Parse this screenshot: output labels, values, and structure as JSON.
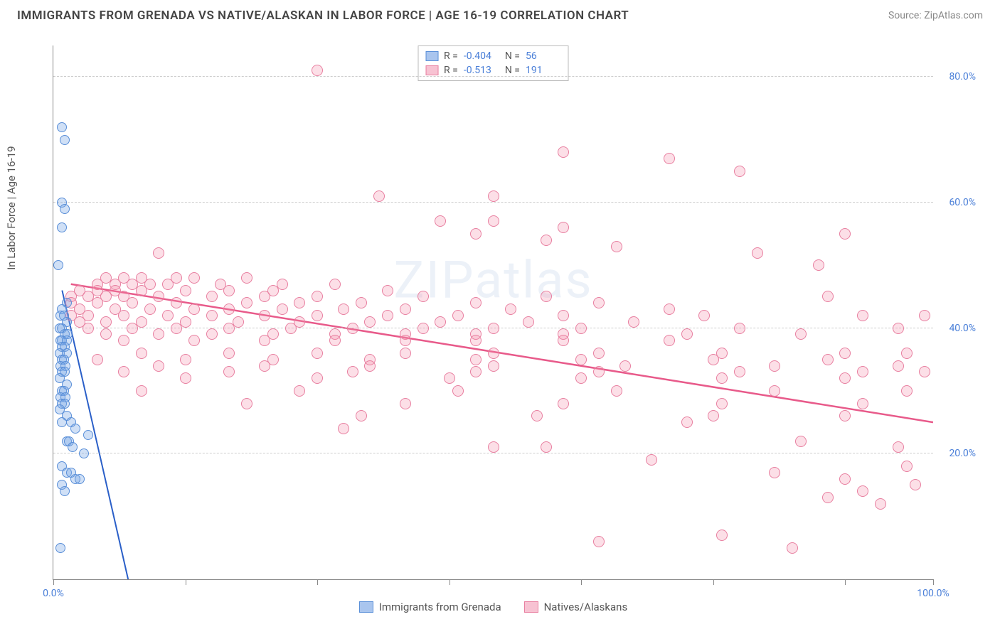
{
  "title": "IMMIGRANTS FROM GRENADA VS NATIVE/ALASKAN IN LABOR FORCE | AGE 16-19 CORRELATION CHART",
  "source": "Source: ZipAtlas.com",
  "ylabel": "In Labor Force | Age 16-19",
  "watermark": "ZIPatlas",
  "xlim": [
    0,
    100
  ],
  "ylim": [
    0,
    85
  ],
  "xtick_positions": [
    0,
    15,
    30,
    45,
    60,
    75,
    90,
    100
  ],
  "xtick_labels": {
    "0": "0.0%",
    "100": "100.0%"
  },
  "ytick_positions": [
    20,
    40,
    60,
    80
  ],
  "ytick_labels": {
    "20": "20.0%",
    "40": "40.0%",
    "60": "60.0%",
    "80": "80.0%"
  },
  "grid_y": [
    20,
    40,
    60,
    80
  ],
  "grid_color": "#cccccc",
  "background_color": "#ffffff",
  "series": {
    "grenada": {
      "label": "Immigrants from Grenada",
      "marker_fill": "rgba(120, 165, 230, 0.35)",
      "marker_stroke": "#5a8fd8",
      "marker_size": 14,
      "swatch_fill": "#a9c5ee",
      "swatch_stroke": "#5a8fd8",
      "R": "-0.404",
      "N": "56",
      "trend": {
        "x1": 1,
        "y1": 46,
        "x2": 8.5,
        "y2": 0,
        "color": "#2a5fc8",
        "width": 2
      },
      "points": [
        [
          1,
          72
        ],
        [
          1.3,
          70
        ],
        [
          1,
          60
        ],
        [
          1.3,
          59
        ],
        [
          1,
          56
        ],
        [
          0.6,
          50
        ],
        [
          1.5,
          44
        ],
        [
          1,
          43
        ],
        [
          0.8,
          42
        ],
        [
          1.2,
          42
        ],
        [
          1.5,
          41
        ],
        [
          1,
          40
        ],
        [
          0.7,
          40
        ],
        [
          1.3,
          39
        ],
        [
          1.6,
          39
        ],
        [
          1,
          38
        ],
        [
          0.8,
          38
        ],
        [
          1.5,
          38
        ],
        [
          1,
          37
        ],
        [
          1.3,
          37
        ],
        [
          0.7,
          36
        ],
        [
          1.5,
          36
        ],
        [
          1,
          35
        ],
        [
          1.2,
          35
        ],
        [
          0.8,
          34
        ],
        [
          1.4,
          34
        ],
        [
          1,
          33
        ],
        [
          1.3,
          33
        ],
        [
          0.7,
          32
        ],
        [
          1.5,
          31
        ],
        [
          1,
          30
        ],
        [
          1.2,
          30
        ],
        [
          0.8,
          29
        ],
        [
          1.4,
          29
        ],
        [
          1,
          28
        ],
        [
          1.3,
          28
        ],
        [
          0.7,
          27
        ],
        [
          1.5,
          26
        ],
        [
          1,
          25
        ],
        [
          2,
          25
        ],
        [
          2.5,
          24
        ],
        [
          1.5,
          22
        ],
        [
          1.8,
          22
        ],
        [
          2.2,
          21
        ],
        [
          3.5,
          20
        ],
        [
          1,
          18
        ],
        [
          1.5,
          17
        ],
        [
          2,
          17
        ],
        [
          2.5,
          16
        ],
        [
          3,
          16
        ],
        [
          1,
          15
        ],
        [
          1.3,
          14
        ],
        [
          4,
          23
        ],
        [
          0.8,
          5
        ]
      ]
    },
    "natives": {
      "label": "Natives/Alaskans",
      "marker_fill": "rgba(245, 140, 170, 0.28)",
      "marker_stroke": "#e87fa0",
      "marker_size": 16,
      "swatch_fill": "#f7c2d2",
      "swatch_stroke": "#e87fa0",
      "R": "-0.513",
      "N": "191",
      "trend": {
        "x1": 2,
        "y1": 47,
        "x2": 100,
        "y2": 25,
        "color": "#e85a8a",
        "width": 2.5
      },
      "points": [
        [
          30,
          81
        ],
        [
          58,
          68
        ],
        [
          70,
          67
        ],
        [
          78,
          65
        ],
        [
          37,
          61
        ],
        [
          50,
          61
        ],
        [
          44,
          57
        ],
        [
          50,
          57
        ],
        [
          58,
          56
        ],
        [
          48,
          55
        ],
        [
          56,
          54
        ],
        [
          64,
          53
        ],
        [
          80,
          52
        ],
        [
          90,
          55
        ],
        [
          12,
          52
        ],
        [
          87,
          50
        ],
        [
          6,
          48
        ],
        [
          8,
          48
        ],
        [
          10,
          48
        ],
        [
          14,
          48
        ],
        [
          16,
          48
        ],
        [
          22,
          48
        ],
        [
          5,
          47
        ],
        [
          7,
          47
        ],
        [
          9,
          47
        ],
        [
          11,
          47
        ],
        [
          13,
          47
        ],
        [
          19,
          47
        ],
        [
          26,
          47
        ],
        [
          32,
          47
        ],
        [
          3,
          46
        ],
        [
          5,
          46
        ],
        [
          7,
          46
        ],
        [
          10,
          46
        ],
        [
          15,
          46
        ],
        [
          20,
          46
        ],
        [
          25,
          46
        ],
        [
          38,
          46
        ],
        [
          2,
          45
        ],
        [
          4,
          45
        ],
        [
          6,
          45
        ],
        [
          8,
          45
        ],
        [
          12,
          45
        ],
        [
          18,
          45
        ],
        [
          24,
          45
        ],
        [
          30,
          45
        ],
        [
          42,
          45
        ],
        [
          56,
          45
        ],
        [
          88,
          45
        ],
        [
          2,
          44
        ],
        [
          5,
          44
        ],
        [
          9,
          44
        ],
        [
          14,
          44
        ],
        [
          22,
          44
        ],
        [
          28,
          44
        ],
        [
          35,
          44
        ],
        [
          48,
          44
        ],
        [
          62,
          44
        ],
        [
          3,
          43
        ],
        [
          7,
          43
        ],
        [
          11,
          43
        ],
        [
          16,
          43
        ],
        [
          20,
          43
        ],
        [
          26,
          43
        ],
        [
          33,
          43
        ],
        [
          40,
          43
        ],
        [
          52,
          43
        ],
        [
          70,
          43
        ],
        [
          2,
          42
        ],
        [
          4,
          42
        ],
        [
          8,
          42
        ],
        [
          13,
          42
        ],
        [
          18,
          42
        ],
        [
          24,
          42
        ],
        [
          30,
          42
        ],
        [
          38,
          42
        ],
        [
          46,
          42
        ],
        [
          58,
          42
        ],
        [
          74,
          42
        ],
        [
          92,
          42
        ],
        [
          99,
          42
        ],
        [
          3,
          41
        ],
        [
          6,
          41
        ],
        [
          10,
          41
        ],
        [
          15,
          41
        ],
        [
          21,
          41
        ],
        [
          28,
          41
        ],
        [
          36,
          41
        ],
        [
          44,
          41
        ],
        [
          54,
          41
        ],
        [
          66,
          41
        ],
        [
          4,
          40
        ],
        [
          9,
          40
        ],
        [
          14,
          40
        ],
        [
          20,
          40
        ],
        [
          27,
          40
        ],
        [
          34,
          40
        ],
        [
          42,
          40
        ],
        [
          50,
          40
        ],
        [
          60,
          40
        ],
        [
          78,
          40
        ],
        [
          96,
          40
        ],
        [
          6,
          39
        ],
        [
          12,
          39
        ],
        [
          18,
          39
        ],
        [
          25,
          39
        ],
        [
          32,
          39
        ],
        [
          40,
          39
        ],
        [
          48,
          39
        ],
        [
          58,
          39
        ],
        [
          72,
          39
        ],
        [
          85,
          39
        ],
        [
          8,
          38
        ],
        [
          16,
          38
        ],
        [
          24,
          38
        ],
        [
          32,
          38
        ],
        [
          40,
          38
        ],
        [
          48,
          38
        ],
        [
          58,
          38
        ],
        [
          70,
          38
        ],
        [
          10,
          36
        ],
        [
          20,
          36
        ],
        [
          30,
          36
        ],
        [
          40,
          36
        ],
        [
          50,
          36
        ],
        [
          62,
          36
        ],
        [
          76,
          36
        ],
        [
          90,
          36
        ],
        [
          97,
          36
        ],
        [
          5,
          35
        ],
        [
          15,
          35
        ],
        [
          25,
          35
        ],
        [
          36,
          35
        ],
        [
          48,
          35
        ],
        [
          60,
          35
        ],
        [
          75,
          35
        ],
        [
          88,
          35
        ],
        [
          12,
          34
        ],
        [
          24,
          34
        ],
        [
          36,
          34
        ],
        [
          50,
          34
        ],
        [
          65,
          34
        ],
        [
          82,
          34
        ],
        [
          96,
          34
        ],
        [
          99,
          33
        ],
        [
          8,
          33
        ],
        [
          20,
          33
        ],
        [
          34,
          33
        ],
        [
          48,
          33
        ],
        [
          62,
          33
        ],
        [
          78,
          33
        ],
        [
          92,
          33
        ],
        [
          15,
          32
        ],
        [
          30,
          32
        ],
        [
          45,
          32
        ],
        [
          60,
          32
        ],
        [
          76,
          32
        ],
        [
          90,
          32
        ],
        [
          10,
          30
        ],
        [
          28,
          30
        ],
        [
          46,
          30
        ],
        [
          64,
          30
        ],
        [
          82,
          30
        ],
        [
          97,
          30
        ],
        [
          22,
          28
        ],
        [
          40,
          28
        ],
        [
          58,
          28
        ],
        [
          76,
          28
        ],
        [
          92,
          28
        ],
        [
          35,
          26
        ],
        [
          55,
          26
        ],
        [
          75,
          26
        ],
        [
          90,
          26
        ],
        [
          33,
          24
        ],
        [
          50,
          21
        ],
        [
          56,
          21
        ],
        [
          72,
          25
        ],
        [
          85,
          22
        ],
        [
          96,
          21
        ],
        [
          68,
          19
        ],
        [
          82,
          17
        ],
        [
          90,
          16
        ],
        [
          97,
          18
        ],
        [
          92,
          14
        ],
        [
          98,
          15
        ],
        [
          88,
          13
        ],
        [
          94,
          12
        ],
        [
          62,
          6
        ],
        [
          76,
          7
        ],
        [
          84,
          5
        ]
      ]
    }
  },
  "bottom_legend": [
    {
      "key": "grenada"
    },
    {
      "key": "natives"
    }
  ]
}
